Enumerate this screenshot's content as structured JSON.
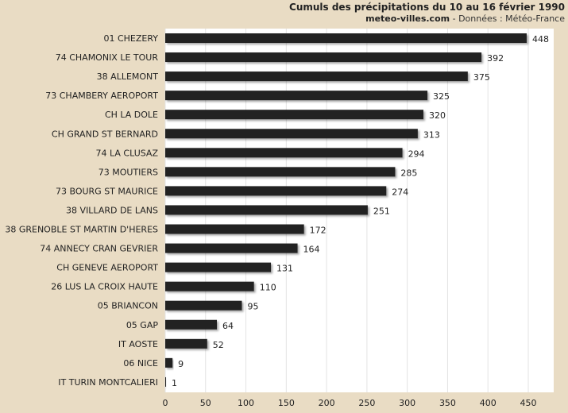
{
  "chart_data": {
    "type": "bar",
    "orientation": "horizontal",
    "title": "Cumuls des précipitations du 10 au 16 février 1990",
    "subtitle_site": "meteo-villes.com",
    "subtitle_source": " - Données : Météo-France",
    "xlabel": "",
    "ylabel": "",
    "xlim": [
      0,
      450
    ],
    "xticks": [
      0,
      50,
      100,
      150,
      200,
      250,
      300,
      350,
      400,
      450
    ],
    "grid": true,
    "legend": "none",
    "categories": [
      "01 CHEZERY",
      "74 CHAMONIX LE TOUR",
      "38 ALLEMONT",
      "73 CHAMBERY AEROPORT",
      "CH LA DOLE",
      "CH GRAND ST BERNARD",
      "74 LA CLUSAZ",
      "73 MOUTIERS",
      "73 BOURG ST MAURICE",
      "38 VILLARD DE LANS",
      "38 GRENOBLE ST MARTIN D'HERES",
      "74 ANNECY CRAN GEVRIER",
      "CH GENEVE AEROPORT",
      "26 LUS LA CROIX HAUTE",
      "05 BRIANCON",
      "05 GAP",
      "IT AOSTE",
      "06 NICE",
      "IT TURIN MONTCALIERI"
    ],
    "values": [
      448,
      392,
      375,
      325,
      320,
      313,
      294,
      285,
      274,
      251,
      172,
      164,
      131,
      110,
      95,
      64,
      52,
      9,
      1
    ],
    "colors": {
      "background": "#e9dcc4",
      "plot_background": "#ffffff",
      "bar": "#222222",
      "grid": "#e3e3e3",
      "text": "#222222"
    }
  }
}
